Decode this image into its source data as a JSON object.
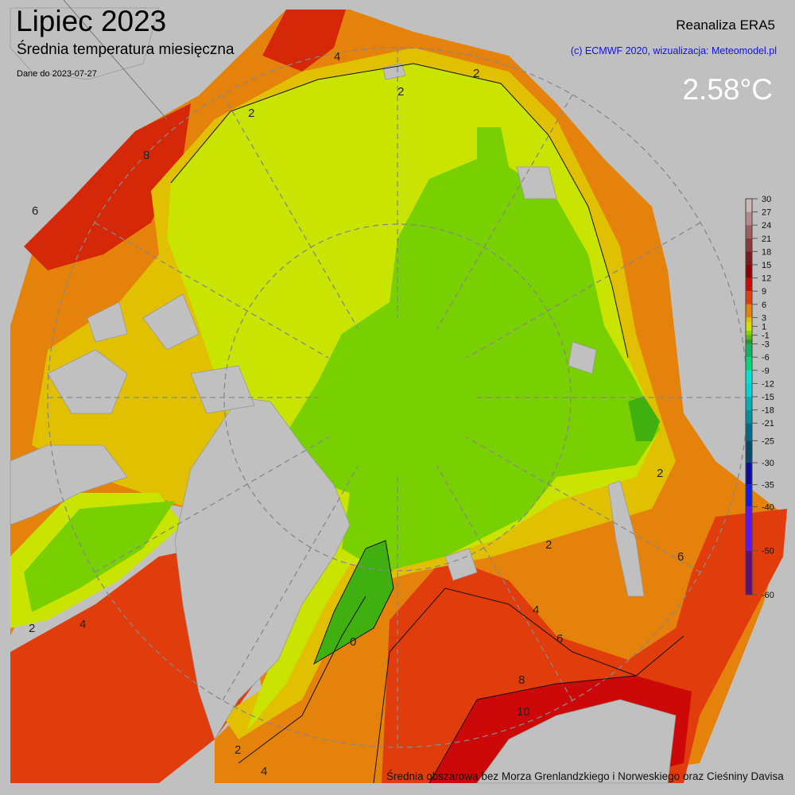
{
  "header": {
    "title": "Lipiec 2023",
    "subtitle": "Średnia temperatura miesięczna",
    "date_note": "Dane do 2023-07-27"
  },
  "source": {
    "model": "Reanaliza ERA5",
    "credit": "(c) ECMWF 2020, wizualizacja: Meteomodel.pl"
  },
  "mean_value": "2.58°C",
  "footer": "Średnia obszarowa bez Morza Grenlandzkiego i Norweskiego oraz Cieśniny Davisa",
  "colorbar": {
    "unit": "°C",
    "range": [
      -60,
      30
    ],
    "tick_labels": [
      30,
      27,
      24,
      21,
      18,
      15,
      12,
      9,
      6,
      3,
      1,
      -1,
      -3,
      -6,
      -9,
      -12,
      -15,
      -18,
      -21,
      -25,
      -30,
      -35,
      -40,
      -50,
      -60
    ],
    "bands": [
      {
        "from": 27,
        "to": 30,
        "color": "#cbb8b8"
      },
      {
        "from": 24,
        "to": 27,
        "color": "#b48a8a"
      },
      {
        "from": 21,
        "to": 24,
        "color": "#9c5e5e"
      },
      {
        "from": 18,
        "to": 21,
        "color": "#8a3a3a"
      },
      {
        "from": 15,
        "to": 18,
        "color": "#7a1a1a"
      },
      {
        "from": 12,
        "to": 15,
        "color": "#8c0000"
      },
      {
        "from": 9,
        "to": 12,
        "color": "#cc0808"
      },
      {
        "from": 6,
        "to": 9,
        "color": "#e03c0c"
      },
      {
        "from": 3,
        "to": 6,
        "color": "#e4820c"
      },
      {
        "from": 2,
        "to": 3,
        "color": "#e0c000"
      },
      {
        "from": 1,
        "to": 2,
        "color": "#d8dc00"
      },
      {
        "from": 0,
        "to": 1,
        "color": "#c8e400"
      },
      {
        "from": -1,
        "to": 0,
        "color": "#8cd000"
      },
      {
        "from": -2,
        "to": -1,
        "color": "#5cb810"
      },
      {
        "from": -3,
        "to": -2,
        "color": "#2c9a20"
      },
      {
        "from": -6,
        "to": -3,
        "color": "#10b464"
      },
      {
        "from": -9,
        "to": -6,
        "color": "#00d87c"
      },
      {
        "from": -12,
        "to": -9,
        "color": "#00e4d4"
      },
      {
        "from": -15,
        "to": -12,
        "color": "#00d4d8"
      },
      {
        "from": -18,
        "to": -15,
        "color": "#00b0b4"
      },
      {
        "from": -21,
        "to": -18,
        "color": "#00909c"
      },
      {
        "from": -25,
        "to": -21,
        "color": "#006c8c"
      },
      {
        "from": -30,
        "to": -25,
        "color": "#054a6a"
      },
      {
        "from": -35,
        "to": -30,
        "color": "#0c0ca0"
      },
      {
        "from": -40,
        "to": -35,
        "color": "#1020e0"
      },
      {
        "from": -50,
        "to": -40,
        "color": "#6018f0"
      },
      {
        "from": -60,
        "to": -50,
        "color": "#5c1078"
      }
    ]
  },
  "map": {
    "colors": {
      "land": "#c0c0c0",
      "orange": "#e4820c",
      "red": "#e03c0c",
      "dark_red": "#cc0808",
      "yellow": "#e0c000",
      "lime": "#c8e400",
      "green": "#78d000",
      "dark_green": "#40b010",
      "grid": "#888888"
    },
    "contour_labels": [
      "2",
      "2",
      "2",
      "4",
      "4",
      "6",
      "6",
      "8",
      "8",
      "10",
      "0",
      "2",
      "4",
      "2",
      "4",
      "6",
      "2",
      "2"
    ]
  }
}
